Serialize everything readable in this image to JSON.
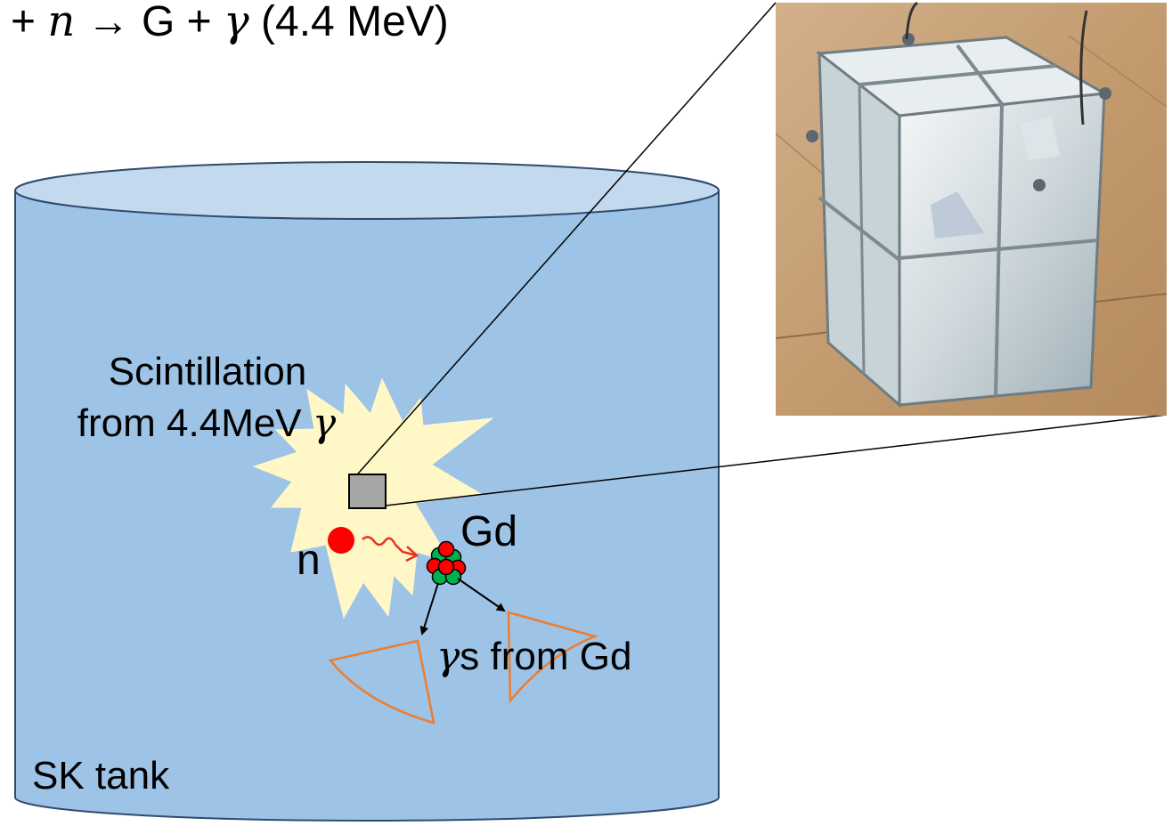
{
  "top_equation": {
    "seg1": "+ ",
    "n_symbol": "n",
    "seg2": " → ",
    "seg3": "G",
    "seg4": " + ",
    "gamma": "γ",
    "seg5": " (4.4 MeV)"
  },
  "labels": {
    "scintillation_line1": "Scintillation",
    "scintillation_line2_prefix": "from 4.4MeV ",
    "gamma_symbol": "γ",
    "gd_label": "Gd",
    "neutron_label": "n",
    "gammas_prefix": "γ",
    "gammas_suffix": "s from Gd",
    "tank_label": "SK tank"
  },
  "colors": {
    "tank_fill": "#9dc3e6",
    "tank_top": "#c3d9ee",
    "tank_stroke": "#2f4b6e",
    "flash": "#fff8c6",
    "detector": "#a6a6a6",
    "neutron": "#ff0000",
    "cone": "#ed7d31",
    "nucleus_green": "#00b050",
    "nucleus_red": "#ff0000",
    "photo_bg": "#c19a70"
  },
  "icons": {
    "detector": "detector-box-icon",
    "neutron": "neutron-dot-icon",
    "nucleus": "gd-nucleus-icon",
    "wavy": "wavy-arrow-icon",
    "cone": "cherenkov-cone-icon"
  }
}
